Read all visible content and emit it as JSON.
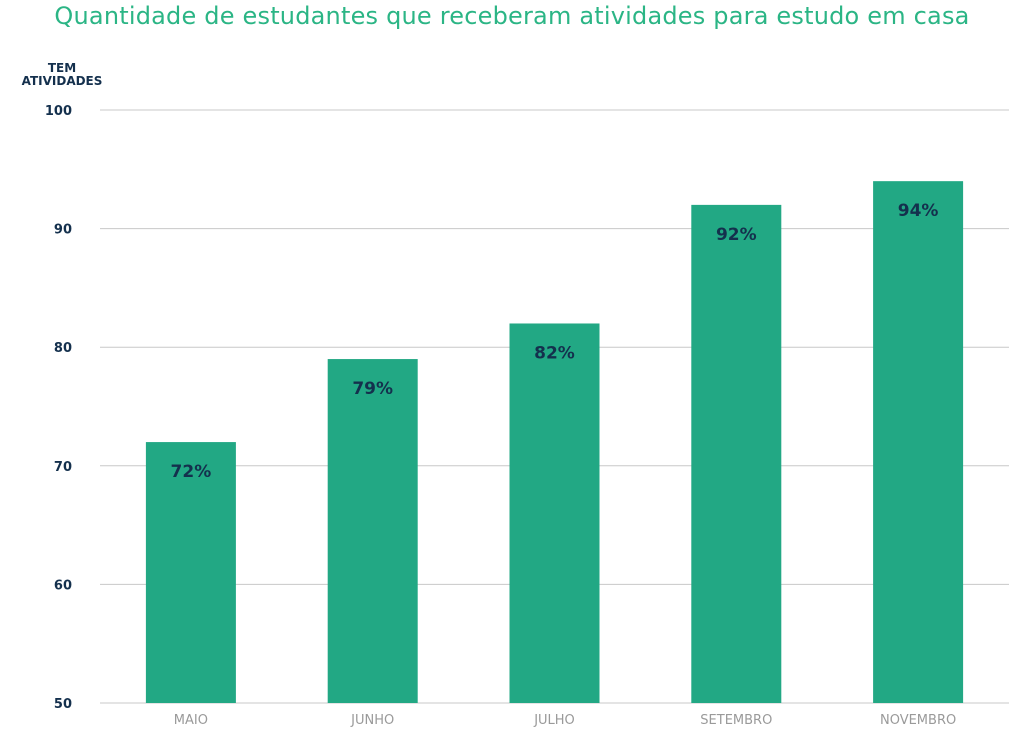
{
  "chart_data": {
    "type": "bar",
    "title": "Quantidade de estudantes que receberam atividades para estudo em casa",
    "ylabel": "TEM\nATIVIDADES",
    "xlabel": "",
    "categories": [
      "MAIO",
      "JUNHO",
      "JULHO",
      "SETEMBRO",
      "NOVEMBRO"
    ],
    "values": [
      72,
      79,
      82,
      92,
      94
    ],
    "value_labels": [
      "72%",
      "79%",
      "82%",
      "92%",
      "94%"
    ],
    "ylim": [
      50,
      100
    ],
    "yticks": [
      50,
      60,
      70,
      80,
      90,
      100
    ],
    "ytick_labels": [
      "50",
      "60",
      "70",
      "80",
      "90",
      "100"
    ],
    "grid": true,
    "legend": "none",
    "colors": {
      "bar": "#22a884",
      "title": "#2bb585",
      "axis_text": "#14304d",
      "category_text": "#9a9a9a",
      "grid": "#c8c8c8"
    }
  }
}
